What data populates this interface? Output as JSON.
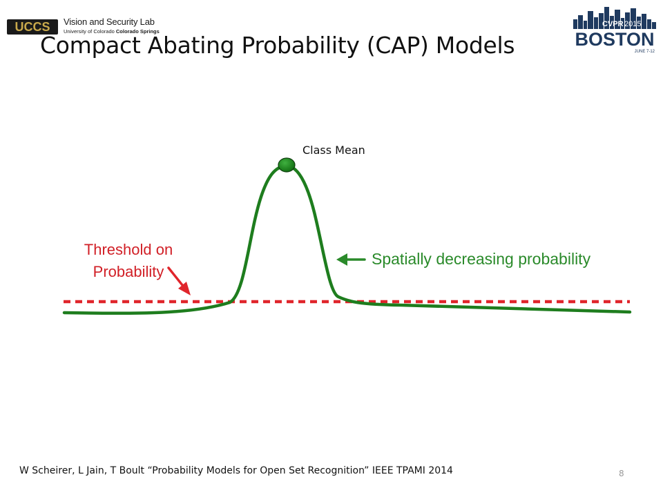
{
  "header": {
    "lab_name": "Vision and Security Lab",
    "lab_university": "University of Colorado ",
    "lab_campus": "Colorado Springs",
    "uccs_logo_text": "UCCS",
    "conference_logo_name": "CVPR",
    "conference_logo_year": "2015",
    "conference_logo_city": "BOSTON",
    "conference_logo_dates": "JUNE 7-12"
  },
  "slide": {
    "title": "Compact Abating Probability (CAP) Models",
    "page_number": "8"
  },
  "diagram": {
    "class_mean_label": "Class Mean",
    "threshold_label_line1": "Threshold on",
    "threshold_label_line2": "Probability",
    "spatial_label": "Spatially decreasing probability",
    "colors": {
      "curve": "#1e7d1e",
      "mean_dot": "#1e8a1e",
      "threshold": "#e0252b",
      "threshold_text": "#d11f26",
      "spatial_text": "#2a8a2a"
    }
  },
  "footer": {
    "citation": "W Scheirer, L Jain, T Boult “Probability Models for Open Set Recognition” IEEE TPAMI 2014"
  }
}
